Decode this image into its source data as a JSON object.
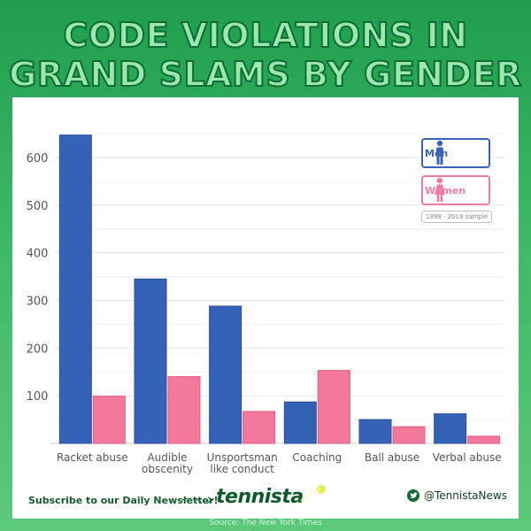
{
  "title": {
    "line1": "Code violations in",
    "line2": "Grand Slams by gender"
  },
  "chart_data": {
    "type": "bar",
    "categories": [
      "Racket abuse",
      "Audible\nobscenity",
      "Unsportsman\nlike conduct",
      "Coaching",
      "Ball abuse",
      "Verbal abuse"
    ],
    "series": [
      {
        "name": "Men",
        "values": [
          647,
          345,
          288,
          87,
          50,
          62
        ],
        "color": "#3462b6"
      },
      {
        "name": "Women",
        "values": [
          99,
          140,
          67,
          153,
          35,
          15
        ],
        "color": "#f4789b"
      }
    ],
    "yticks": [
      100,
      200,
      300,
      400,
      500,
      600
    ],
    "ylim": [
      0,
      650
    ],
    "grid": true,
    "legend": "top-right",
    "legend_note": "1998 - 2018 sample"
  },
  "footer": {
    "subscribe": "Subscribe to our Daily Newsletter!",
    "brand": "tennista",
    "twitter_icon": "twitter-icon",
    "twitter_handle": "@TennistaNews",
    "source": "Source: The New York Times"
  }
}
